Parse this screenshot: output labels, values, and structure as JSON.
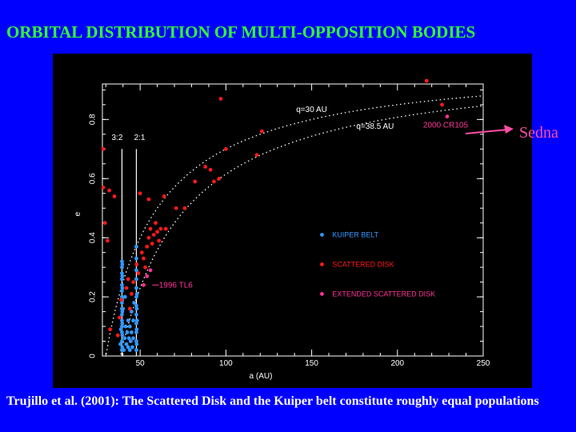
{
  "slide": {
    "title": "ORBITAL DISTRIBUTION OF MULTI-OPPOSITION BODIES",
    "caption": "Trujillo et al. (2001): The Scattered Disk and the Kuiper belt constitute roughly equal populations",
    "sedna_label": "Sedna",
    "colors": {
      "background": "#0000ff",
      "title": "#33ff33",
      "sedna": "#ff4da6",
      "caption": "#ffffff"
    }
  },
  "chart_data": {
    "type": "scatter",
    "xlabel": "a (AU)",
    "ylabel": "e",
    "xlim": [
      28,
      250
    ],
    "ylim": [
      0,
      0.92
    ],
    "x_ticks": [
      50,
      100,
      150,
      200,
      250
    ],
    "y_ticks": [
      0,
      0.2,
      0.4,
      0.6,
      0.8
    ],
    "grid": false,
    "legend_position": "center-right",
    "series": [
      {
        "name": "KUIPER BELT",
        "color": "#3399ff",
        "points": [
          [
            39.4,
            0.02
          ],
          [
            39.4,
            0.05
          ],
          [
            39.4,
            0.08
          ],
          [
            39.4,
            0.1
          ],
          [
            39.4,
            0.12
          ],
          [
            39.4,
            0.14
          ],
          [
            39.4,
            0.16
          ],
          [
            39.4,
            0.18
          ],
          [
            39.4,
            0.2
          ],
          [
            39.4,
            0.22
          ],
          [
            39.4,
            0.24
          ],
          [
            39.4,
            0.26
          ],
          [
            39.4,
            0.28
          ],
          [
            39.4,
            0.3
          ],
          [
            39.4,
            0.32
          ],
          [
            39.6,
            0.03
          ],
          [
            39.6,
            0.07
          ],
          [
            39.6,
            0.11
          ],
          [
            39.6,
            0.15
          ],
          [
            39.6,
            0.19
          ],
          [
            39.6,
            0.23
          ],
          [
            39.6,
            0.27
          ],
          [
            39.6,
            0.31
          ],
          [
            40.5,
            0.02
          ],
          [
            41,
            0.06
          ],
          [
            41.5,
            0.1
          ],
          [
            42,
            0.04
          ],
          [
            42.5,
            0.08
          ],
          [
            43,
            0.03
          ],
          [
            43,
            0.12
          ],
          [
            43.5,
            0.06
          ],
          [
            44,
            0.02
          ],
          [
            44,
            0.1
          ],
          [
            44.5,
            0.05
          ],
          [
            45,
            0.08
          ],
          [
            45,
            0.15
          ],
          [
            45.5,
            0.03
          ],
          [
            46,
            0.06
          ],
          [
            46,
            0.12
          ],
          [
            46.5,
            0.18
          ],
          [
            47.8,
            0.02
          ],
          [
            47.8,
            0.05
          ],
          [
            47.8,
            0.08
          ],
          [
            47.8,
            0.11
          ],
          [
            47.8,
            0.14
          ],
          [
            47.8,
            0.17
          ],
          [
            47.8,
            0.2
          ],
          [
            47.8,
            0.23
          ],
          [
            47.8,
            0.26
          ],
          [
            47.8,
            0.29
          ],
          [
            47.8,
            0.33
          ],
          [
            47.8,
            0.37
          ],
          [
            48,
            0.04
          ],
          [
            48,
            0.09
          ],
          [
            48,
            0.16
          ],
          [
            48.2,
            0.12
          ],
          [
            48.2,
            0.21
          ],
          [
            38.5,
            0.04
          ],
          [
            38.8,
            0.09
          ],
          [
            40,
            0.16
          ],
          [
            41.2,
            0.2
          ]
        ]
      },
      {
        "name": "SCATTERED DISK",
        "color": "#ff1a1a",
        "points": [
          [
            28.5,
            0.7
          ],
          [
            28.5,
            0.57
          ],
          [
            29.5,
            0.45
          ],
          [
            31,
            0.39
          ],
          [
            32,
            0.56
          ],
          [
            32.5,
            0.09
          ],
          [
            35,
            0.54
          ],
          [
            37,
            0.07
          ],
          [
            38,
            0.13
          ],
          [
            39,
            0.19
          ],
          [
            42,
            0.23
          ],
          [
            43,
            0.26
          ],
          [
            44,
            0.16
          ],
          [
            45,
            0.21
          ],
          [
            46,
            0.25
          ],
          [
            48,
            0.31
          ],
          [
            49,
            0.28
          ],
          [
            50,
            0.55
          ],
          [
            51,
            0.35
          ],
          [
            52,
            0.33
          ],
          [
            53,
            0.3
          ],
          [
            54,
            0.37
          ],
          [
            55,
            0.4
          ],
          [
            55,
            0.53
          ],
          [
            56,
            0.43
          ],
          [
            57,
            0.38
          ],
          [
            58,
            0.41
          ],
          [
            59,
            0.45
          ],
          [
            60,
            0.42
          ],
          [
            61,
            0.39
          ],
          [
            62,
            0.43
          ],
          [
            64,
            0.54
          ],
          [
            65,
            0.43
          ],
          [
            71,
            0.5
          ],
          [
            76,
            0.5
          ],
          [
            82,
            0.59
          ],
          [
            88,
            0.64
          ],
          [
            91,
            0.63
          ],
          [
            93,
            0.59
          ],
          [
            96,
            0.6
          ],
          [
            97,
            0.87
          ],
          [
            100,
            0.7
          ],
          [
            118,
            0.68
          ],
          [
            121,
            0.76
          ],
          [
            217,
            0.97
          ],
          [
            226,
            0.85
          ]
        ]
      },
      {
        "name": "EXTENDED SCATTERED DISK",
        "color": "#ff3399",
        "points": [
          [
            52,
            0.24
          ],
          [
            54,
            0.27
          ],
          [
            56,
            0.29
          ],
          [
            229,
            0.81
          ]
        ]
      }
    ],
    "curves": [
      {
        "label": "q=30 AU",
        "q": 30
      },
      {
        "label": "q=38.5 AU",
        "q": 38.5
      }
    ],
    "resonances": [
      {
        "label": "3:2",
        "a": 39.4
      },
      {
        "label": "2:1",
        "a": 47.8
      }
    ],
    "annotations": [
      {
        "text": "1996 TL6",
        "x": 82,
        "y": 0.24
      },
      {
        "text": "2000 CR105",
        "x": 229,
        "y": 0.81
      }
    ]
  }
}
